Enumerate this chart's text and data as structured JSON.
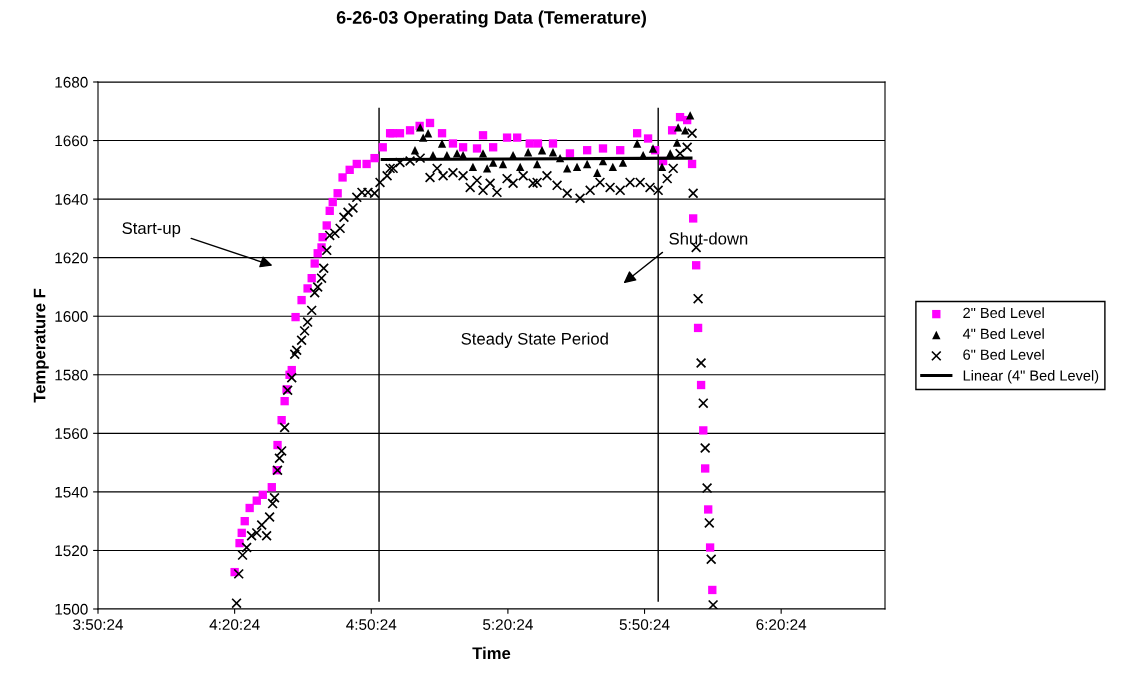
{
  "chart_data": {
    "type": "scatter",
    "title": "6-26-03 Operating Data (Temerature)",
    "xlabel": "Time",
    "ylabel": "Temperature F",
    "xlim": [
      3.84,
      6.72
    ],
    "xticks": [
      {
        "value": 3.84,
        "label": "3:50:24"
      },
      {
        "value": 4.34,
        "label": "4:20:24"
      },
      {
        "value": 4.84,
        "label": "4:50:24"
      },
      {
        "value": 5.34,
        "label": "5:20:24"
      },
      {
        "value": 5.84,
        "label": "5:50:24"
      },
      {
        "value": 6.34,
        "label": "6:20:24"
      }
    ],
    "ylim": [
      1500,
      1680
    ],
    "yticks": [
      1500,
      1520,
      1540,
      1560,
      1580,
      1600,
      1620,
      1640,
      1660,
      1680
    ],
    "grid": "y",
    "legend": "right",
    "series": [
      {
        "name": "2\" Bed Level",
        "color": "#ff00ff",
        "marker": "square",
        "x": [
          4.34,
          4.358,
          4.366,
          4.377,
          4.395,
          4.421,
          4.443,
          4.476,
          4.494,
          4.497,
          4.512,
          4.523,
          4.53,
          4.541,
          4.549,
          4.563,
          4.585,
          4.607,
          4.622,
          4.633,
          4.644,
          4.658,
          4.662,
          4.677,
          4.688,
          4.699,
          4.717,
          4.735,
          4.761,
          4.787,
          4.823,
          4.852,
          4.882,
          4.909,
          4.918,
          4.945,
          4.982,
          5.017,
          5.055,
          5.099,
          5.139,
          5.176,
          5.227,
          5.249,
          5.286,
          5.337,
          5.374,
          5.42,
          5.45,
          5.505,
          5.567,
          5.63,
          5.688,
          5.751,
          5.813,
          5.853,
          5.879,
          5.908,
          5.941,
          5.97,
          5.996,
          6.014,
          6.018,
          6.029,
          6.036,
          6.047,
          6.055,
          6.062,
          6.073,
          6.08,
          6.088
        ],
        "values": [
          1512.6,
          1522.5,
          1526,
          1530,
          1534.5,
          1537,
          1539,
          1541.6,
          1547.4,
          1556,
          1564.5,
          1571,
          1575,
          1580,
          1581.6,
          1599.7,
          1605.5,
          1609.5,
          1613,
          1618,
          1621.5,
          1623.5,
          1627,
          1631,
          1636,
          1639,
          1642,
          1647.4,
          1650,
          1652,
          1652,
          1654,
          1657.7,
          1662.5,
          1662.5,
          1662.5,
          1663.5,
          1665,
          1666,
          1662.5,
          1659,
          1657.7,
          1657.3,
          1661.8,
          1657.7,
          1661,
          1661,
          1659,
          1659,
          1659,
          1655.6,
          1656.7,
          1657.3,
          1656.7,
          1662.5,
          1660.7,
          1656.7,
          1653,
          1663.5,
          1668,
          1667,
          1652,
          1633.4,
          1617.4,
          1596,
          1576.5,
          1561,
          1548,
          1534,
          1521,
          1506.5
        ]
      },
      {
        "name": "4\" Bed Level",
        "color": "#000000",
        "marker": "triangle",
        "x": [
          5.0,
          5.019,
          5.03,
          5.048,
          5.066,
          5.099,
          5.117,
          5.154,
          5.176,
          5.212,
          5.249,
          5.264,
          5.286,
          5.322,
          5.359,
          5.385,
          5.414,
          5.447,
          5.465,
          5.505,
          5.531,
          5.557,
          5.593,
          5.63,
          5.667,
          5.688,
          5.724,
          5.761,
          5.813,
          5.835,
          5.871,
          5.904,
          5.934,
          5.959,
          5.963,
          5.989,
          6.007
        ],
        "values": [
          1656.7,
          1664.5,
          1661,
          1662.5,
          1655,
          1659,
          1655,
          1655.6,
          1655,
          1651,
          1655.6,
          1650.5,
          1652.5,
          1652,
          1655,
          1651,
          1656,
          1652,
          1656.7,
          1656,
          1654,
          1650.5,
          1651,
          1652,
          1649,
          1653,
          1651,
          1652.5,
          1659,
          1655,
          1657.3,
          1651,
          1655.6,
          1659.3,
          1664.5,
          1663.5,
          1668.6
        ]
      },
      {
        "name": "6\" Bed Level",
        "color": "#000000",
        "marker": "cross",
        "x": [
          4.347,
          4.355,
          4.369,
          4.384,
          4.402,
          4.421,
          4.439,
          4.457,
          4.468,
          4.479,
          4.486,
          4.497,
          4.504,
          4.512,
          4.523,
          4.534,
          4.549,
          4.56,
          4.567,
          4.585,
          4.596,
          4.607,
          4.622,
          4.633,
          4.644,
          4.658,
          4.666,
          4.677,
          4.688,
          4.707,
          4.726,
          4.74,
          4.755,
          4.773,
          4.787,
          4.806,
          4.828,
          4.852,
          4.872,
          4.898,
          4.909,
          4.92,
          4.945,
          4.982,
          5.019,
          5.055,
          5.081,
          5.103,
          5.139,
          5.176,
          5.202,
          5.227,
          5.249,
          5.275,
          5.3,
          5.337,
          5.359,
          5.396,
          5.432,
          5.447,
          5.483,
          5.52,
          5.557,
          5.604,
          5.641,
          5.677,
          5.714,
          5.751,
          5.787,
          5.824,
          5.86,
          5.89,
          5.923,
          5.945,
          5.97,
          5.996,
          6.014,
          6.018,
          6.029,
          6.036,
          6.047,
          6.055,
          6.062,
          6.069,
          6.077,
          6.084,
          6.091
        ],
        "values": [
          1502,
          1512,
          1518.4,
          1521,
          1525,
          1526,
          1528.7,
          1525,
          1531.4,
          1536,
          1538,
          1547.4,
          1551.5,
          1554,
          1562,
          1574.7,
          1579,
          1587,
          1588.4,
          1591.8,
          1595,
          1598,
          1602,
          1608,
          1610,
          1613,
          1616.4,
          1622.5,
          1627.6,
          1628.3,
          1630,
          1633.8,
          1635.5,
          1637,
          1640.6,
          1642.3,
          1642.3,
          1642,
          1645.7,
          1648,
          1650.5,
          1650.5,
          1652.5,
          1653,
          1654,
          1647.4,
          1650.5,
          1648,
          1649,
          1648,
          1644,
          1646.4,
          1643,
          1645.4,
          1642.3,
          1647,
          1645.4,
          1648,
          1645.4,
          1645.7,
          1648,
          1644.7,
          1642,
          1640.3,
          1643,
          1645.7,
          1644,
          1643,
          1645.7,
          1645.7,
          1644,
          1643,
          1647,
          1650.5,
          1655.6,
          1657.7,
          1662.5,
          1642,
          1623.5,
          1606,
          1584,
          1570.3,
          1555,
          1541.3,
          1529.4,
          1517,
          1501.4
        ]
      },
      {
        "name": "Linear (4\" Bed Level)",
        "color": "#000000",
        "type": "line",
        "marker": "none",
        "line_style": "solid",
        "x": [
          4.88,
          6.01
        ],
        "values": [
          1653.5,
          1654.0
        ]
      }
    ],
    "ref_lines": [
      {
        "axis": "x",
        "value": 4.8685,
        "color": "#000000"
      },
      {
        "axis": "x",
        "value": 5.89,
        "color": "#000000"
      }
    ],
    "annotations": [
      "Start-up",
      "Steady State Period",
      "Shut-down"
    ]
  }
}
